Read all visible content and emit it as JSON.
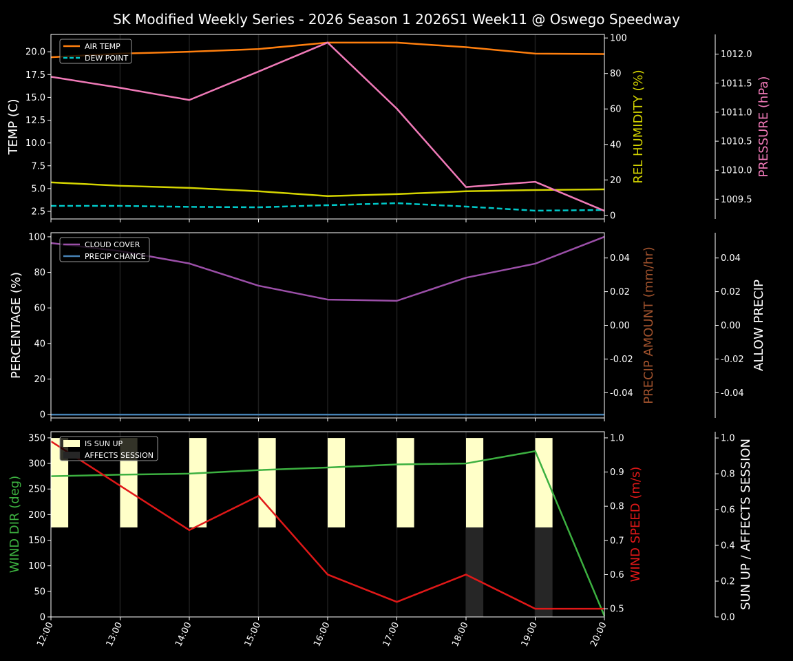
{
  "title": "SK Modified Weekly Series - 2026 Season 1 2026S1 Week11 @ Oswego Speedway",
  "x_labels": [
    "12:00",
    "13:00",
    "14:00",
    "15:00",
    "16:00",
    "17:00",
    "18:00",
    "19:00",
    "20:00"
  ],
  "chart_data": [
    {
      "type": "line",
      "x": [
        "12:00",
        "13:00",
        "14:00",
        "15:00",
        "16:00",
        "17:00",
        "18:00",
        "19:00",
        "20:00"
      ],
      "axes": {
        "left": {
          "label": "TEMP (C)",
          "color": "#ffffff",
          "range": [
            1.67,
            21.9
          ],
          "ticks": [
            2.5,
            5.0,
            7.5,
            10.0,
            12.5,
            15.0,
            17.5,
            20.0
          ],
          "decimals": 1
        },
        "right": {
          "label": "REL HUMIDITY (%)",
          "color": "#d4d400",
          "range": [
            -2.0,
            102.0
          ],
          "ticks": [
            0,
            20,
            40,
            60,
            80,
            100
          ],
          "decimals": 0
        },
        "right2": {
          "label": "PRESSURE (hPa)",
          "color": "#f07ab8",
          "range": [
            1009.16,
            1012.34
          ],
          "ticks": [
            1009.5,
            1010.0,
            1010.5,
            1011.0,
            1011.5,
            1012.0
          ],
          "decimals": 1
        }
      },
      "series": [
        {
          "name": "AIR TEMP",
          "axis": "left",
          "color": "#ff7f0e",
          "dashed": false,
          "legend": true,
          "values": [
            19.4,
            19.8,
            20.0,
            20.3,
            21.0,
            21.0,
            20.5,
            19.8,
            19.75
          ]
        },
        {
          "name": "DEW POINT",
          "axis": "left",
          "color": "#00c8c8",
          "dashed": true,
          "legend": true,
          "values": [
            3.1,
            3.1,
            3.0,
            2.95,
            3.18,
            3.4,
            3.03,
            2.58,
            2.65
          ]
        },
        {
          "axis": "right",
          "color": "#d4d400",
          "dashed": false,
          "legend": false,
          "values": [
            18.6,
            16.7,
            15.5,
            13.6,
            10.9,
            12.0,
            13.6,
            14.3,
            14.7
          ]
        },
        {
          "axis": "right2",
          "color": "#f07ab8",
          "dashed": false,
          "legend": false,
          "values": [
            1011.61,
            1011.42,
            1011.21,
            1011.7,
            1012.2,
            1011.06,
            1009.71,
            1009.8,
            1009.3
          ]
        }
      ],
      "legend_position": "top-left"
    },
    {
      "type": "line",
      "x": [
        "12:00",
        "13:00",
        "14:00",
        "15:00",
        "16:00",
        "17:00",
        "18:00",
        "19:00",
        "20:00"
      ],
      "axes": {
        "left": {
          "label": "PERCENTAGE (%)",
          "color": "#ffffff",
          "range": [
            -1.9,
            102.3
          ],
          "ticks": [
            0,
            20,
            40,
            60,
            80,
            100
          ],
          "decimals": 0
        },
        "right": {
          "label": "PRECIP AMOUNT (mm/hr)",
          "color": "#a0522d",
          "range": [
            -0.055,
            0.055
          ],
          "ticks": [
            -0.04,
            -0.02,
            0.0,
            0.02,
            0.04
          ],
          "decimals": 2
        },
        "right2": {
          "label": "ALLOW PRECIP",
          "color": "#ffffff",
          "range": [
            -0.055,
            0.055
          ],
          "ticks": [
            -0.04,
            -0.02,
            0.0,
            0.02,
            0.04
          ],
          "decimals": 2
        }
      },
      "series": [
        {
          "name": "CLOUD COVER",
          "axis": "left",
          "color": "#9b4fa8",
          "dashed": false,
          "legend": true,
          "values": [
            96.5,
            92,
            85,
            72.5,
            64.7,
            64,
            77,
            84.9,
            100
          ]
        },
        {
          "name": "PRECIP CHANCE",
          "axis": "left",
          "color": "#4682b4",
          "dashed": false,
          "legend": true,
          "values": [
            0,
            0,
            0,
            0,
            0,
            0,
            0,
            0,
            0
          ]
        }
      ],
      "legend_position": "top-left"
    },
    {
      "type": "line+bar",
      "x": [
        "12:00",
        "13:00",
        "14:00",
        "15:00",
        "16:00",
        "17:00",
        "18:00",
        "19:00",
        "20:00"
      ],
      "axes": {
        "left": {
          "label": "WIND DIR (deg)",
          "color": "#3cb040",
          "range": [
            0,
            362
          ],
          "ticks": [
            0,
            50,
            100,
            150,
            200,
            250,
            300,
            350
          ],
          "decimals": 0
        },
        "right": {
          "label": "WIND SPEED (m/s)",
          "color": "#e01818",
          "range": [
            0.476,
            1.018
          ],
          "ticks": [
            0.5,
            0.6,
            0.7,
            0.8,
            0.9,
            1.0
          ],
          "decimals": 1
        },
        "right2": {
          "label": "SUN UP / AFFECTS SESSION",
          "color": "#ffffff",
          "range": [
            0,
            1.035
          ],
          "ticks": [
            0.0,
            0.2,
            0.4,
            0.6,
            0.8,
            1.0
          ],
          "decimals": 1
        }
      },
      "bars": [
        {
          "name": "IS SUN UP",
          "color": "#ffffc8",
          "base": 0.5,
          "height": 0.5,
          "values": [
            1,
            1,
            1,
            1,
            1,
            1,
            1,
            1,
            0
          ]
        },
        {
          "name": "AFFECTS SESSION",
          "color": "#262626",
          "base": 0,
          "height": 0.5,
          "values": [
            0,
            0,
            0,
            0,
            0,
            0,
            1,
            1,
            0
          ]
        }
      ],
      "series": [
        {
          "axis": "left",
          "color": "#3cb040",
          "dashed": false,
          "legend": false,
          "values": [
            275,
            278,
            280,
            287,
            292,
            298,
            300,
            324,
            2
          ]
        },
        {
          "axis": "right",
          "color": "#e01818",
          "dashed": false,
          "legend": false,
          "values": [
            0.99,
            0.86,
            0.73,
            0.83,
            0.6,
            0.52,
            0.6,
            0.5,
            0.5
          ]
        }
      ],
      "legend_position": "top-left"
    }
  ]
}
